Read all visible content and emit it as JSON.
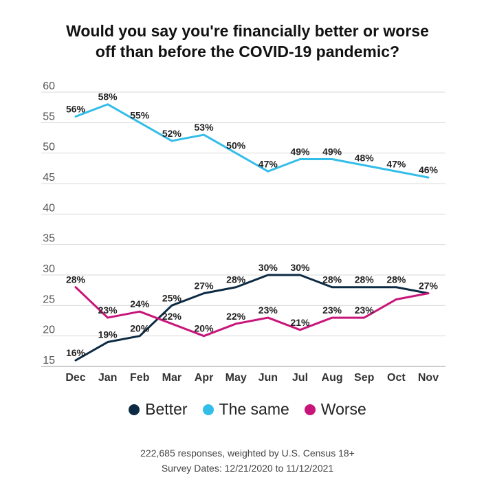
{
  "chart_data": {
    "type": "line",
    "title_line1": "Would you say you're financially better or worse",
    "title_line2": "off than before the COVID-19 pandemic?",
    "categories": [
      "Dec",
      "Jan",
      "Feb",
      "Mar",
      "Apr",
      "May",
      "Jun",
      "Jul",
      "Aug",
      "Sep",
      "Oct",
      "Nov"
    ],
    "ylim": [
      15,
      60
    ],
    "yticks": [
      15,
      20,
      25,
      30,
      35,
      40,
      45,
      50,
      55,
      60
    ],
    "grid": true,
    "legend_position": "bottom",
    "series": [
      {
        "name": "Better",
        "color": "#0d2a44",
        "values": [
          16,
          19,
          20,
          25,
          27,
          28,
          30,
          30,
          28,
          28,
          28,
          27
        ],
        "labels": [
          "16%",
          "19%",
          "20%",
          "25%",
          "27%",
          "28%",
          "30%",
          "30%",
          "28%",
          "28%",
          "28%",
          "27%"
        ]
      },
      {
        "name": "The same",
        "color": "#33bde9",
        "values": [
          56,
          58,
          55,
          52,
          53,
          50,
          47,
          49,
          49,
          48,
          47,
          46
        ],
        "labels": [
          "56%",
          "58%",
          "55%",
          "52%",
          "53%",
          "50%",
          "47%",
          "49%",
          "49%",
          "48%",
          "47%",
          "46%"
        ]
      },
      {
        "name": "Worse",
        "color": "#c8157a",
        "values": [
          28,
          23,
          24,
          22,
          20,
          22,
          23,
          21,
          23,
          23,
          26,
          27
        ],
        "labels": [
          "28%",
          "23%",
          "24%",
          "22%",
          "20%",
          "22%",
          "23%",
          "21%",
          "23%",
          "23%",
          "",
          ""
        ]
      }
    ]
  },
  "legend": {
    "better": "Better",
    "same": "The same",
    "worse": "Worse"
  },
  "footer": {
    "line1": "222,685 responses, weighted by U.S. Census 18+",
    "line2": "Survey Dates: 12/21/2020 to 11/12/2021"
  }
}
